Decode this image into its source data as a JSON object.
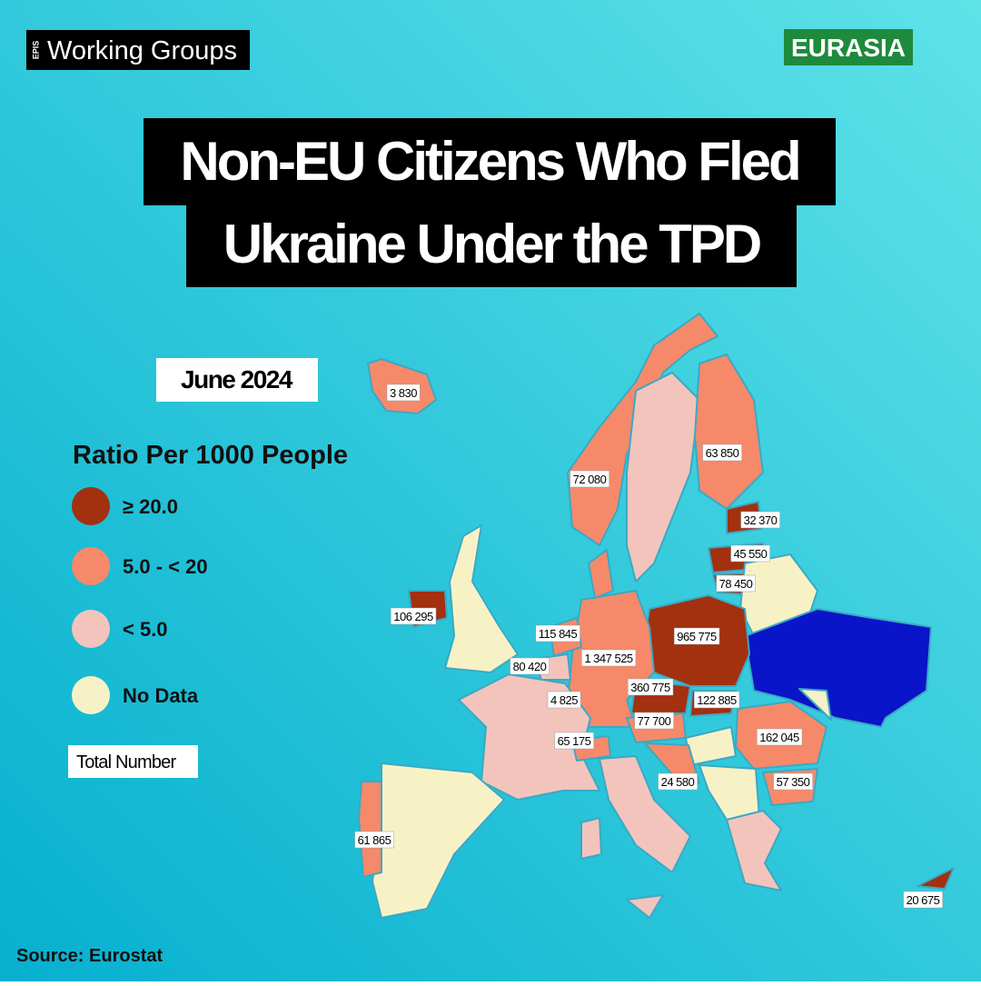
{
  "header": {
    "brand_mark": "EPIS",
    "brand": "Working Groups",
    "tag": "EURASIA"
  },
  "title": [
    "Non-EU Citizens Who Fled",
    "Ukraine Under the TPD"
  ],
  "date": "June 2024",
  "legend": {
    "title": "Ratio Per 1000  People",
    "items": [
      {
        "label": "≥ 20.0",
        "color": "#a3300f"
      },
      {
        "label": "5.0 - < 20",
        "color": "#f6896a"
      },
      {
        "label": "< 5.0",
        "color": "#f2c4bc"
      },
      {
        "label": "No Data",
        "color": "#f7f2c6"
      }
    ],
    "total_label": "Total Number"
  },
  "map_labels": [
    "3 830",
    "72 080",
    "63 850",
    "32 370",
    "45 550",
    "78 450",
    "106 295",
    "115 845",
    "965 775",
    "1 347 525",
    "80 420",
    "360 775",
    "122 885",
    "4 825",
    "77 700",
    "162 045",
    "65 175",
    "24 580",
    "57 350",
    "61 865",
    "20 675"
  ],
  "source": "Source: Eurostat"
}
